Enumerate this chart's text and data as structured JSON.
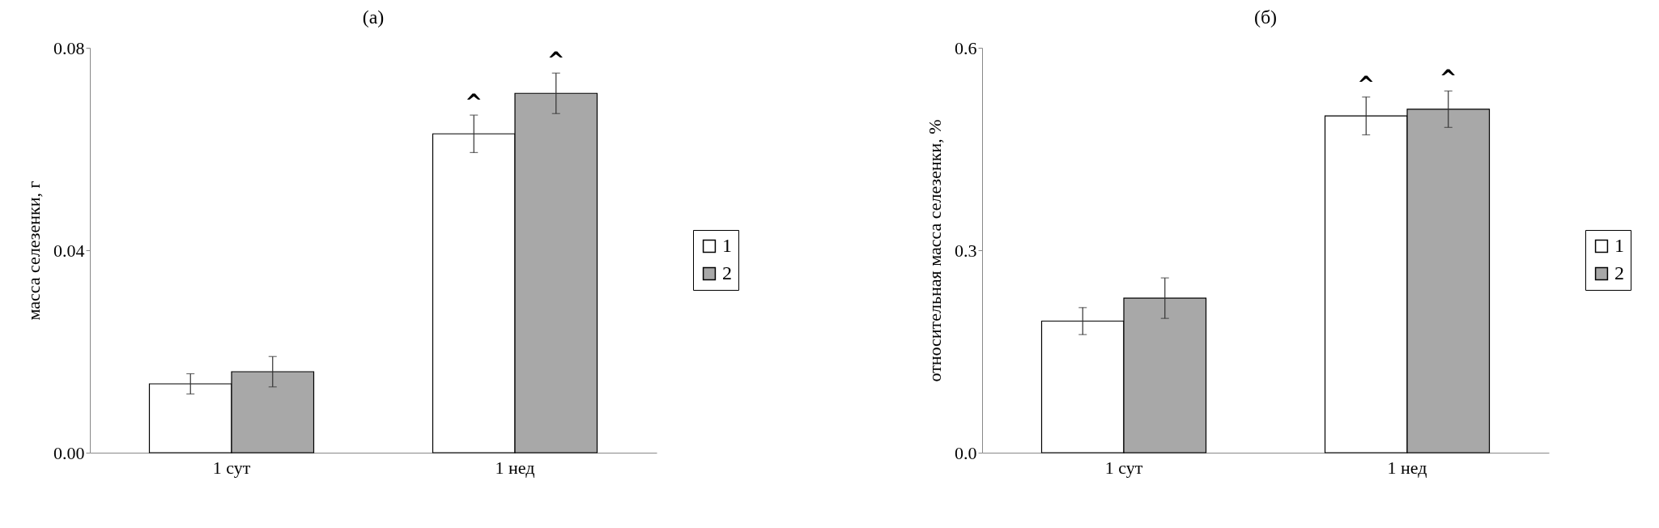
{
  "chart_data": [
    {
      "type": "bar",
      "title": "(a)",
      "ylabel": "масса селезенки, г",
      "categories": [
        "1 сут",
        "1 нед"
      ],
      "ylim": [
        0,
        0.08
      ],
      "yticks": [
        {
          "value": 0,
          "label": "0.00"
        },
        {
          "value": 0.04,
          "label": "0.04"
        },
        {
          "value": 0.08,
          "label": "0.08"
        }
      ],
      "legend": "right",
      "grid": false,
      "series": [
        {
          "name": "1",
          "color": "#ffffff",
          "values": [
            0.0136,
            0.063
          ],
          "errors": [
            0.002,
            0.0037
          ]
        },
        {
          "name": "2",
          "color": "#a8a8a8",
          "values": [
            0.016,
            0.071
          ],
          "errors": [
            0.003,
            0.004
          ]
        }
      ],
      "annotations": [
        {
          "text": "^",
          "x": "1 нед",
          "y": 0.063
        },
        {
          "text": "^",
          "x": "1 нед",
          "y": 0.071
        }
      ]
    },
    {
      "type": "bar",
      "title": "(б)",
      "ylabel": "относительная масса селезенки, %",
      "categories": [
        "1 сут",
        "1 нед"
      ],
      "ylim": [
        0,
        0.6
      ],
      "yticks": [
        {
          "value": 0,
          "label": "0.0"
        },
        {
          "value": 0.3,
          "label": "0.3"
        },
        {
          "value": 0.6,
          "label": "0.6"
        }
      ],
      "legend": "right",
      "grid": false,
      "series": [
        {
          "name": "1",
          "color": "#ffffff",
          "values": [
            0.195,
            0.499
          ],
          "errors": [
            0.02,
            0.028
          ]
        },
        {
          "name": "2",
          "color": "#a8a8a8",
          "values": [
            0.229,
            0.509
          ],
          "errors": [
            0.03,
            0.027
          ]
        }
      ],
      "annotations": [
        {
          "text": "^",
          "x": "1 нед",
          "y": 0.499
        },
        {
          "text": "^",
          "x": "1 нед",
          "y": 0.509
        }
      ]
    }
  ]
}
